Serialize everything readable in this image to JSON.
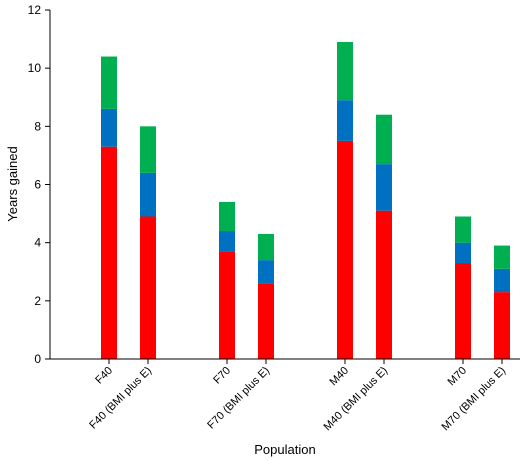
{
  "chart_data": {
    "type": "bar",
    "stacked": true,
    "title": "",
    "xlabel": "Population",
    "ylabel": "Years gained",
    "ylim": [
      0,
      12
    ],
    "yticks": [
      0,
      2,
      4,
      6,
      8,
      10,
      12
    ],
    "legend": "none",
    "grid": false,
    "categories": [
      "F40",
      "F40 (BMI plus E)",
      "F70",
      "F70 (BMI plus E)",
      "M40",
      "M40 (BMI plus E)",
      "M70",
      "M70 (BMI plus E)"
    ],
    "series": [
      {
        "color": "#ff0000",
        "values": [
          7.3,
          4.9,
          3.7,
          2.6,
          7.5,
          5.1,
          3.3,
          2.3
        ]
      },
      {
        "color": "#0070c0",
        "values": [
          1.3,
          1.5,
          0.7,
          0.8,
          1.4,
          1.6,
          0.7,
          0.8
        ]
      },
      {
        "color": "#00b050",
        "values": [
          1.8,
          1.6,
          1.0,
          0.9,
          2.0,
          1.7,
          0.9,
          0.8
        ]
      }
    ]
  }
}
